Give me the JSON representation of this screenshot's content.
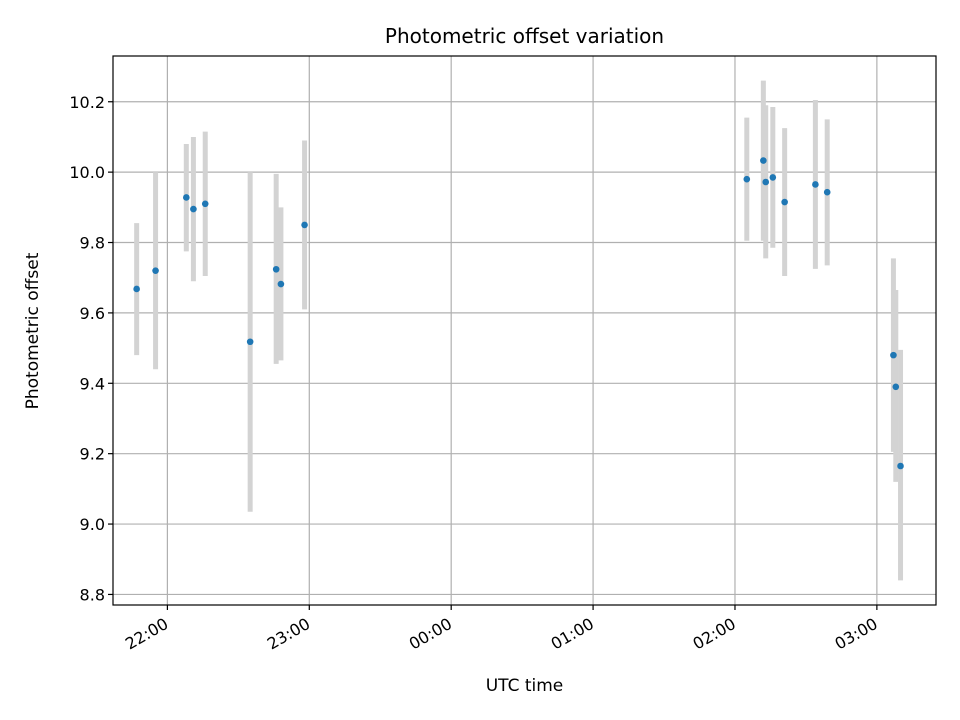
{
  "chart_data": {
    "type": "scatter",
    "title": "Photometric offset variation",
    "xlabel": "UTC time",
    "ylabel": "Photometric offset",
    "xlim": [
      "21:37",
      "03:25"
    ],
    "ylim": [
      8.77,
      10.33
    ],
    "grid": true,
    "x_ticks": [
      "22:00",
      "23:00",
      "00:00",
      "01:00",
      "02:00",
      "03:00"
    ],
    "y_ticks": [
      "8.8",
      "9.0",
      "9.2",
      "9.4",
      "9.6",
      "9.8",
      "10.0",
      "10.2"
    ],
    "marker_color": "#1f77b4",
    "errorbar_color": "#d3d3d3",
    "series": [
      {
        "points": [
          {
            "time": "21:47",
            "y": 9.668,
            "y_low": 9.48,
            "y_high": 9.855
          },
          {
            "time": "21:55",
            "y": 9.72,
            "y_low": 9.44,
            "y_high": 10.0
          },
          {
            "time": "22:08",
            "y": 9.928,
            "y_low": 9.775,
            "y_high": 10.08
          },
          {
            "time": "22:11",
            "y": 9.895,
            "y_low": 9.69,
            "y_high": 10.1
          },
          {
            "time": "22:16",
            "y": 9.91,
            "y_low": 9.705,
            "y_high": 10.115
          },
          {
            "time": "22:35",
            "y": 9.518,
            "y_low": 9.035,
            "y_high": 10.0
          },
          {
            "time": "22:46",
            "y": 9.724,
            "y_low": 9.455,
            "y_high": 9.995
          },
          {
            "time": "22:48",
            "y": 9.682,
            "y_low": 9.465,
            "y_high": 9.9
          },
          {
            "time": "22:58",
            "y": 9.85,
            "y_low": 9.61,
            "y_high": 10.09
          },
          {
            "time": "02:05",
            "y": 9.98,
            "y_low": 9.805,
            "y_high": 10.155
          },
          {
            "time": "02:12",
            "y": 10.033,
            "y_low": 9.805,
            "y_high": 10.26
          },
          {
            "time": "02:13",
            "y": 9.972,
            "y_low": 9.755,
            "y_high": 10.19
          },
          {
            "time": "02:16",
            "y": 9.985,
            "y_low": 9.785,
            "y_high": 10.185
          },
          {
            "time": "02:21",
            "y": 9.915,
            "y_low": 9.705,
            "y_high": 10.125
          },
          {
            "time": "02:34",
            "y": 9.965,
            "y_low": 9.725,
            "y_high": 10.205
          },
          {
            "time": "02:39",
            "y": 9.943,
            "y_low": 9.735,
            "y_high": 10.15
          },
          {
            "time": "03:07",
            "y": 9.48,
            "y_low": 9.205,
            "y_high": 9.755
          },
          {
            "time": "03:08",
            "y": 9.39,
            "y_low": 9.12,
            "y_high": 9.665
          },
          {
            "time": "03:10",
            "y": 9.165,
            "y_low": 8.84,
            "y_high": 9.495
          }
        ]
      }
    ]
  }
}
